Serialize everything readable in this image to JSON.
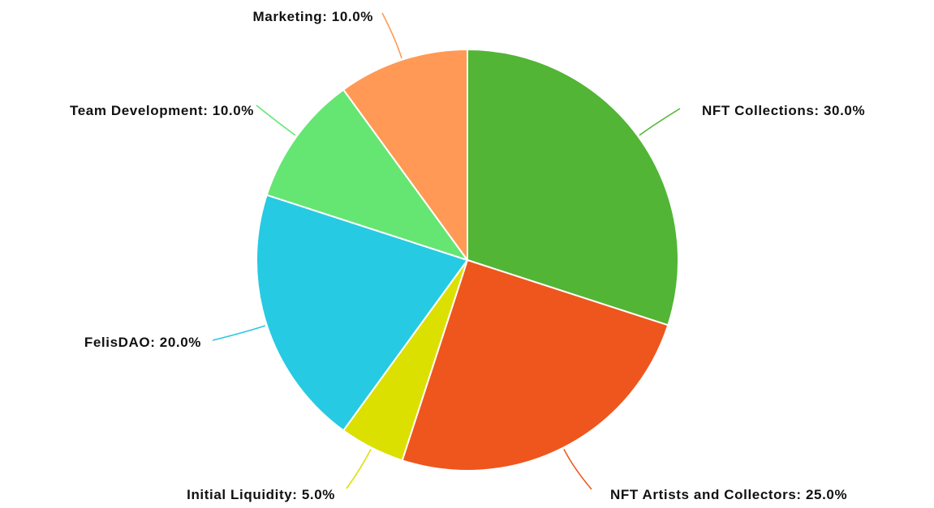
{
  "chart_data": {
    "type": "pie",
    "start_angle_deg": 0,
    "direction": "clockwise",
    "slices": [
      {
        "label": "NFT Collections: 30.0%",
        "value": 30.0,
        "color": "#52b535"
      },
      {
        "label": "NFT Artists and Collectors: 25.0%",
        "value": 25.0,
        "color": "#ee561d"
      },
      {
        "label": "Initial Liquidity: 5.0%",
        "value": 5.0,
        "color": "#dce000"
      },
      {
        "label": "FelisDAO: 20.0%",
        "value": 20.0,
        "color": "#27cae3"
      },
      {
        "label": "Team Development: 10.0%",
        "value": 10.0,
        "color": "#65e672"
      },
      {
        "label": "Marketing: 10.0%",
        "value": 10.0,
        "color": "#ff9955"
      }
    ],
    "slice_border_color": "#ffffff"
  }
}
